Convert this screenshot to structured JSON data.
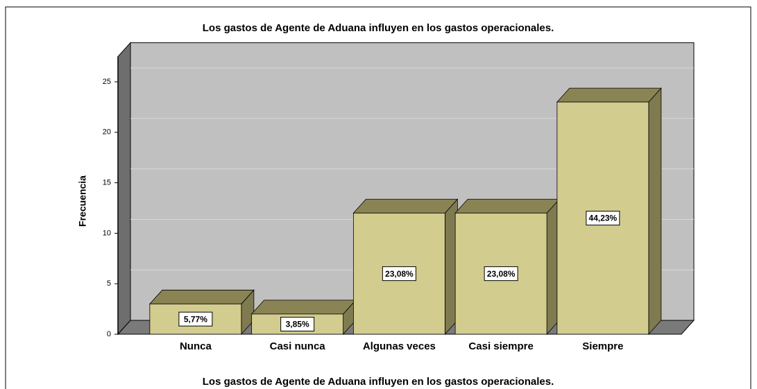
{
  "chart_data": {
    "type": "bar3d",
    "title": "Los gastos de Agente de Aduana influyen en los gastos operacionales.",
    "x_label": "Los gastos de Agente de Aduana influyen en los gastos operacionales.",
    "y_label": "Frecuencia",
    "categories": [
      "Nunca",
      "Casi nunca",
      "Algunas veces",
      "Casi siempre",
      "Siempre"
    ],
    "values": [
      3,
      2,
      12,
      12,
      23
    ],
    "percentages": [
      5.77,
      3.85,
      23.08,
      23.08,
      44.23
    ],
    "percentage_labels": [
      "5,77%",
      "3,85%",
      "23,08%",
      "23,08%",
      "44,23%"
    ],
    "color": "#d2cc8f",
    "ylim": [
      0,
      27.5
    ],
    "yticks": [
      0,
      5,
      10,
      15,
      20,
      25
    ],
    "grid": true
  }
}
